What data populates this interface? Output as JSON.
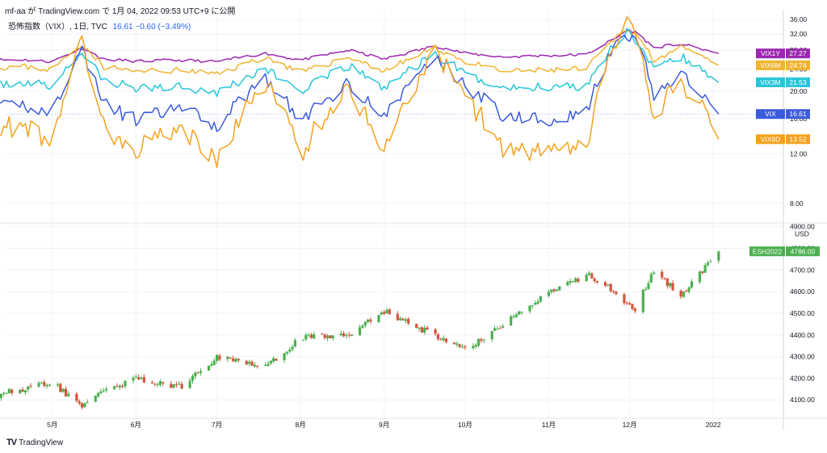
{
  "header": {
    "text": "mf-aa が TradingView.com で 1月 04, 2022 09:53 UTC+9 に公開"
  },
  "legend": {
    "title": "恐怖指数（VIX）, 1日, TVC",
    "values": "16.61  −0.60 (−3.49%)"
  },
  "footer": {
    "brand": "TradingView",
    "logo": "TV"
  },
  "colors": {
    "VIX1Y": "#9c27b0",
    "VIX6M": "#f0b430",
    "VIX3M": "#26c6da",
    "VIX": "#3b5bdb",
    "VIX9D": "#f4a11f",
    "ES_up": "#4caf50",
    "ES_down": "#d4553c"
  },
  "chart_data": [
    {
      "type": "line",
      "title": "恐怖指数（VIX）, 1日, TVC",
      "y_scale": "log",
      "ylim": [
        7,
        37
      ],
      "y_ticks": [
        "36.00",
        "32.00",
        "28.00",
        "24.00",
        "20.00",
        "16.00",
        "12.00",
        "8.00"
      ],
      "x_ticks": [
        "5月",
        "6月",
        "7月",
        "8月",
        "9月",
        "10月",
        "11月",
        "12月",
        "2022"
      ],
      "series": [
        {
          "name": "VIX1Y",
          "last": "27.27",
          "x": [
            "2021-04-01",
            "2021-04-20",
            "2021-05-01",
            "2021-05-12",
            "2021-05-20",
            "2021-06-01",
            "2021-06-18",
            "2021-07-01",
            "2021-07-19",
            "2021-08-01",
            "2021-08-19",
            "2021-09-01",
            "2021-09-20",
            "2021-10-01",
            "2021-10-15",
            "2021-11-01",
            "2021-11-15",
            "2021-11-26",
            "2021-11-30",
            "2021-12-03",
            "2021-12-10",
            "2021-12-20",
            "2022-01-03"
          ],
          "values": [
            25.8,
            25.9,
            25.5,
            28.5,
            26.0,
            25.6,
            25.8,
            25.5,
            27.3,
            25.8,
            28.0,
            26.0,
            29.0,
            27.3,
            26.5,
            26.8,
            27.0,
            31.0,
            33.0,
            32.5,
            28.6,
            29.5,
            27.27
          ]
        },
        {
          "name": "VIX6M",
          "last": "24.74",
          "x": [
            "2021-04-01",
            "2021-04-20",
            "2021-05-01",
            "2021-05-12",
            "2021-05-20",
            "2021-06-01",
            "2021-06-18",
            "2021-07-01",
            "2021-07-19",
            "2021-08-01",
            "2021-08-19",
            "2021-09-01",
            "2021-09-20",
            "2021-10-01",
            "2021-10-15",
            "2021-11-01",
            "2021-11-15",
            "2021-11-26",
            "2021-11-30",
            "2021-12-03",
            "2021-12-10",
            "2021-12-20",
            "2022-01-03"
          ],
          "values": [
            24.2,
            24.5,
            23.8,
            29.5,
            24.5,
            23.5,
            23.8,
            23.0,
            26.5,
            23.2,
            26.5,
            23.6,
            28.5,
            25.5,
            23.5,
            23.8,
            24.0,
            31.0,
            33.5,
            32.0,
            26.0,
            28.5,
            24.74
          ]
        },
        {
          "name": "VIX3M",
          "last": "21.53",
          "x": [
            "2021-04-01",
            "2021-04-20",
            "2021-05-01",
            "2021-05-12",
            "2021-05-20",
            "2021-06-01",
            "2021-06-18",
            "2021-07-01",
            "2021-07-19",
            "2021-08-01",
            "2021-08-19",
            "2021-09-01",
            "2021-09-20",
            "2021-10-01",
            "2021-10-15",
            "2021-11-01",
            "2021-11-15",
            "2021-11-26",
            "2021-11-30",
            "2021-12-03",
            "2021-12-10",
            "2021-12-20",
            "2022-01-03"
          ],
          "values": [
            21.0,
            21.5,
            20.8,
            27.5,
            21.8,
            20.5,
            21.0,
            19.8,
            24.0,
            20.0,
            24.5,
            20.5,
            27.0,
            23.0,
            20.5,
            20.8,
            21.0,
            30.0,
            32.5,
            31.0,
            23.5,
            26.5,
            21.53
          ]
        },
        {
          "name": "VIX",
          "last": "16.61",
          "x": [
            "2021-04-01",
            "2021-04-20",
            "2021-05-01",
            "2021-05-12",
            "2021-05-20",
            "2021-06-01",
            "2021-06-18",
            "2021-07-01",
            "2021-07-19",
            "2021-08-01",
            "2021-08-19",
            "2021-09-01",
            "2021-09-20",
            "2021-10-01",
            "2021-10-15",
            "2021-11-01",
            "2021-11-15",
            "2021-11-26",
            "2021-11-30",
            "2021-12-03",
            "2021-12-10",
            "2021-12-20",
            "2022-01-03"
          ],
          "values": [
            16.8,
            18.0,
            16.5,
            28.0,
            18.0,
            15.8,
            17.5,
            15.0,
            22.5,
            15.5,
            21.5,
            16.0,
            26.5,
            21.0,
            16.5,
            16.0,
            16.8,
            29.0,
            31.0,
            30.5,
            19.5,
            23.0,
            16.61
          ]
        },
        {
          "name": "VIX9D",
          "last": "13.52",
          "x": [
            "2021-04-01",
            "2021-04-20",
            "2021-05-01",
            "2021-05-12",
            "2021-05-20",
            "2021-06-01",
            "2021-06-18",
            "2021-07-01",
            "2021-07-19",
            "2021-08-01",
            "2021-08-19",
            "2021-09-01",
            "2021-09-20",
            "2021-10-01",
            "2021-10-15",
            "2021-11-01",
            "2021-11-15",
            "2021-11-26",
            "2021-11-30",
            "2021-12-03",
            "2021-12-10",
            "2021-12-20",
            "2022-01-03"
          ],
          "values": [
            13.5,
            15.5,
            13.0,
            29.5,
            15.0,
            12.5,
            15.0,
            11.0,
            21.5,
            12.0,
            20.5,
            12.2,
            27.0,
            19.0,
            12.5,
            12.0,
            12.5,
            30.0,
            34.0,
            31.5,
            16.0,
            22.0,
            13.52
          ]
        }
      ]
    },
    {
      "type": "candlestick",
      "name": "ESH2022",
      "unit": "USD",
      "last": "4786.00",
      "ylim": [
        4030,
        4910
      ],
      "y_ticks": [
        "4900.00",
        "4800.00",
        "4700.00",
        "4600.00",
        "4500.00",
        "4400.00",
        "4300.00",
        "4200.00",
        "4100.00"
      ],
      "x_ticks": [
        "5月",
        "6月",
        "7月",
        "8月",
        "9月",
        "10月",
        "11月",
        "12月",
        "2022"
      ],
      "anchors": {
        "x": [
          "2021-04-01",
          "2021-04-20",
          "2021-05-01",
          "2021-05-12",
          "2021-05-20",
          "2021-06-01",
          "2021-06-18",
          "2021-07-01",
          "2021-07-19",
          "2021-08-01",
          "2021-08-19",
          "2021-09-01",
          "2021-09-20",
          "2021-10-01",
          "2021-10-15",
          "2021-11-01",
          "2021-11-15",
          "2021-11-26",
          "2021-11-30",
          "2021-12-03",
          "2021-12-10",
          "2021-12-20",
          "2022-01-03"
        ],
        "close": [
          4105,
          4150,
          4180,
          4065,
          4150,
          4195,
          4160,
          4300,
          4250,
          4385,
          4400,
          4510,
          4395,
          4330,
          4450,
          4590,
          4680,
          4600,
          4540,
          4520,
          4700,
          4580,
          4786
        ]
      }
    }
  ]
}
